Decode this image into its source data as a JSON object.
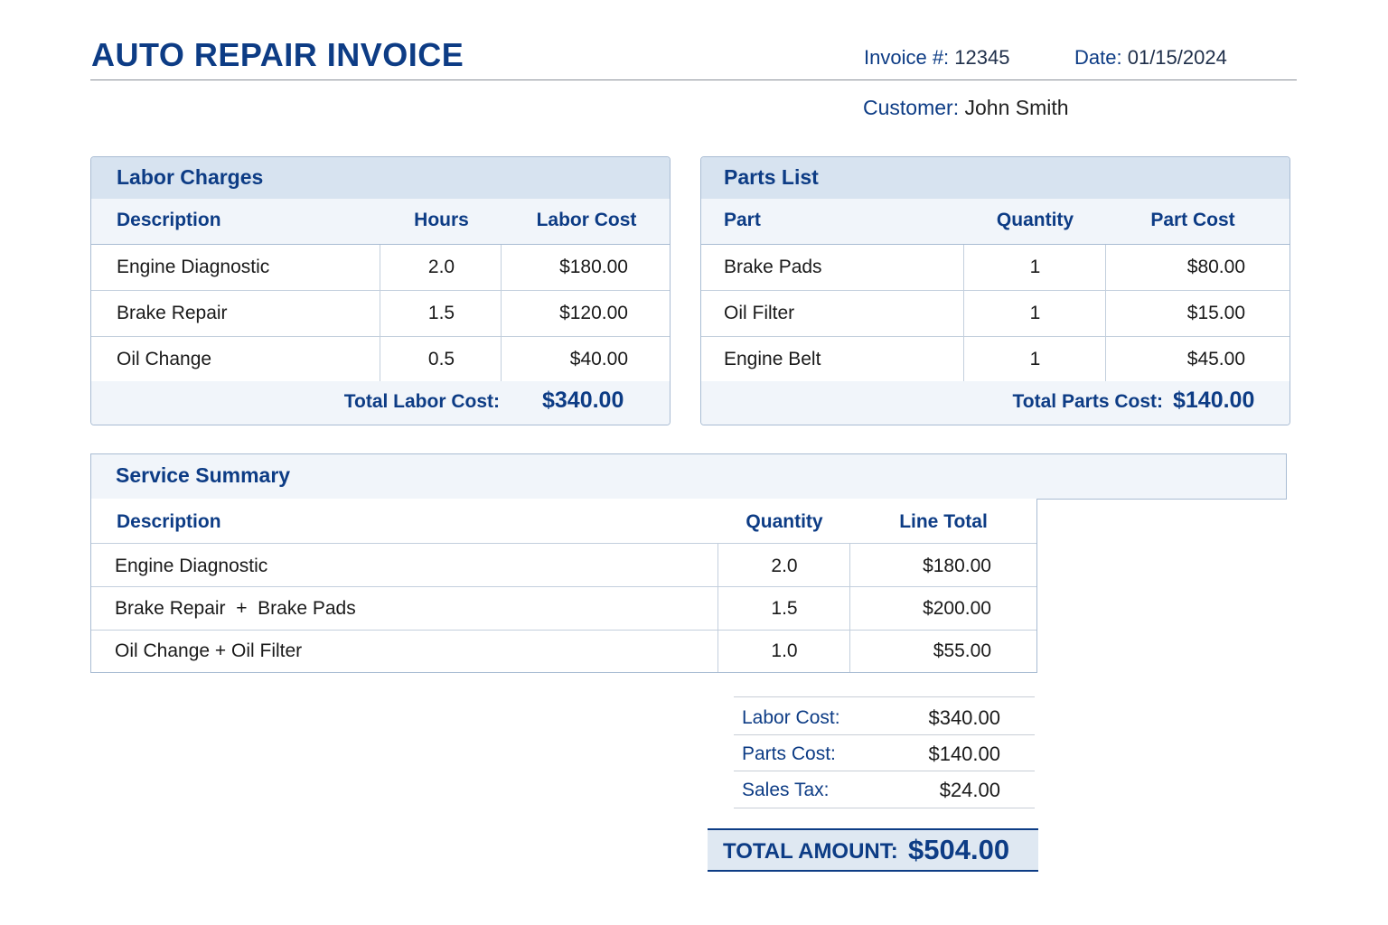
{
  "header": {
    "title": "AUTO REPAIR INVOICE",
    "invoice_label": "Invoice #:",
    "invoice_number": "12345",
    "date_label": "Date:",
    "date_value": "01/15/2024",
    "customer_label": "Customer:",
    "customer_name": "John Smith"
  },
  "labor": {
    "title": "Labor Charges",
    "columns": [
      "Description",
      "Hours",
      "Labor Cost"
    ],
    "rows": [
      {
        "description": "Engine Diagnostic",
        "hours": "2.0",
        "cost": "$180.00"
      },
      {
        "description": "Brake Repair",
        "hours": "1.5",
        "cost": "$120.00"
      },
      {
        "description": "Oil Change",
        "hours": "0.5",
        "cost": "$40.00"
      }
    ],
    "total_label": "Total Labor Cost:",
    "total_value": "$340.00"
  },
  "parts": {
    "title": "Parts List",
    "columns": [
      "Part",
      "Quantity",
      "Part Cost"
    ],
    "rows": [
      {
        "part": "Brake Pads",
        "quantity": "1",
        "cost": "$80.00"
      },
      {
        "part": "Oil Filter",
        "quantity": "1",
        "cost": "$15.00"
      },
      {
        "part": "Engine Belt",
        "quantity": "1",
        "cost": "$45.00"
      }
    ],
    "total_label": "Total Parts Cost:",
    "total_value": "$140.00"
  },
  "summary": {
    "title": "Service Summary",
    "columns": [
      "Description",
      "Quantity",
      "Line Total"
    ],
    "rows": [
      {
        "description": "Engine Diagnostic",
        "quantity": "2.0",
        "total": "$180.00"
      },
      {
        "description": "Brake Repair  +  Brake Pads",
        "quantity": "1.5",
        "total": "$200.00"
      },
      {
        "description": "Oil Change + Oil Filter",
        "quantity": "1.0",
        "total": "$55.00"
      }
    ]
  },
  "totals": {
    "labor_label": "Labor Cost:",
    "labor_value": "$340.00",
    "parts_label": "Parts Cost:",
    "parts_value": "$140.00",
    "tax_label": "Sales Tax:",
    "tax_value": "$24.00",
    "grand_label": "TOTAL AMOUNT:",
    "grand_value": "$504.00"
  }
}
